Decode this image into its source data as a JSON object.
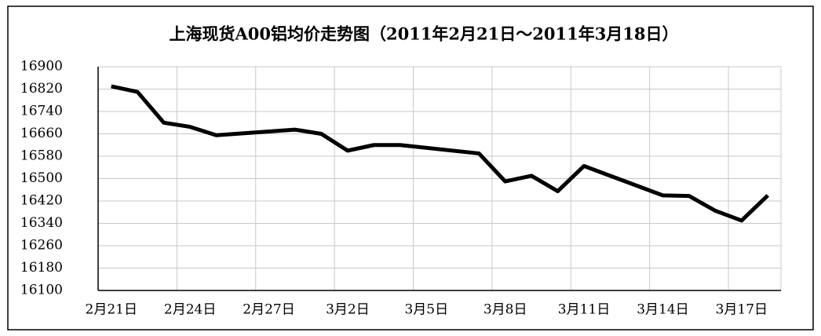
{
  "chart_data": {
    "type": "line",
    "title": "上海现货A00铝均价走势图（2011年2月21日～2011年3月18日）",
    "x": [
      "2月21日",
      "2月22日",
      "2月23日",
      "2月24日",
      "2月25日",
      "2月28日",
      "3月1日",
      "3月2日",
      "3月3日",
      "3月4日",
      "3月7日",
      "3月8日",
      "3月9日",
      "3月10日",
      "3月11日",
      "3月14日",
      "3月15日",
      "3月16日",
      "3月17日",
      "3月18日"
    ],
    "series": [
      {
        "name": "均价",
        "color": "#000000",
        "values": [
          16830,
          16810,
          16700,
          16685,
          16655,
          16675,
          16660,
          16600,
          16620,
          16620,
          16590,
          16490,
          16510,
          16455,
          16545,
          16440,
          16438,
          16385,
          16350,
          16440
        ]
      }
    ],
    "xticks": [
      "2月21日",
      "2月24日",
      "2月27日",
      "3月2日",
      "3月5日",
      "3月8日",
      "3月11日",
      "3月14日",
      "3月17日"
    ],
    "ylim": [
      16100,
      16900
    ],
    "yticks": [
      16100,
      16180,
      16260,
      16340,
      16420,
      16500,
      16580,
      16660,
      16740,
      16820,
      16900
    ],
    "grid": true
  }
}
